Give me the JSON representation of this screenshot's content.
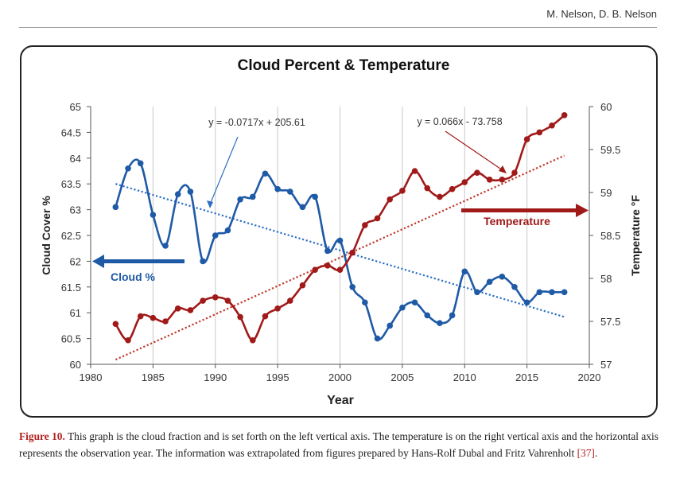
{
  "header": {
    "authors": "M. Nelson, D. B. Nelson"
  },
  "caption": {
    "label": "Figure 10.",
    "text_before_cite": " This graph is the cloud fraction and is set forth on the left vertical axis. The temperature is on the right vertical axis and the horizontal axis represents the observation year. The information was extrapolated from figures prepared by Hans-Rolf Dubal and Fritz Vahrenholt ",
    "cite": "[37]",
    "text_after_cite": "."
  },
  "chart_data": {
    "type": "line",
    "title": "Cloud Percent & Temperature",
    "xlabel": "Year",
    "ylabel_left": "Cloud Cover %",
    "ylabel_right": "Temperature °F",
    "xlim": [
      1980,
      2020
    ],
    "xticks": [
      "1980",
      "1985",
      "1990",
      "1995",
      "2000",
      "2005",
      "2010",
      "2015",
      "2020"
    ],
    "ylim_left": [
      60,
      65
    ],
    "yticks_left": [
      "60",
      "60.5",
      "61",
      "61.5",
      "62",
      "62.5",
      "63",
      "63.5",
      "64",
      "64.5",
      "65"
    ],
    "ylim_right": [
      57,
      60
    ],
    "yticks_right": [
      "57",
      "57.5",
      "58",
      "58.5",
      "59",
      "59.5",
      "60"
    ],
    "grid": "vertical",
    "colors": {
      "cloud": "#1f5aa6",
      "temperature": "#a11a1a",
      "trend_cloud": "#2e6fc4",
      "trend_temp": "#c0392b"
    },
    "series": [
      {
        "name": "Cloud %",
        "axis": "left",
        "x": [
          1982,
          1983,
          1984,
          1985,
          1986,
          1987,
          1988,
          1989,
          1990,
          1991,
          1992,
          1993,
          1994,
          1995,
          1996,
          1997,
          1998,
          1999,
          2000,
          2001,
          2002,
          2003,
          2004,
          2005,
          2006,
          2007,
          2008,
          2009,
          2010,
          2011,
          2012,
          2013,
          2014,
          2015,
          2016,
          2017,
          2018
        ],
        "values": [
          63.05,
          63.8,
          63.9,
          62.9,
          62.3,
          63.3,
          63.35,
          62.0,
          62.5,
          62.6,
          63.2,
          63.25,
          63.7,
          63.4,
          63.35,
          63.05,
          63.25,
          62.2,
          62.4,
          61.5,
          61.2,
          60.5,
          60.75,
          61.1,
          61.2,
          60.95,
          60.8,
          60.95,
          61.8,
          61.4,
          61.6,
          61.7,
          61.5,
          61.2,
          61.4,
          61.4,
          61.4
        ]
      },
      {
        "name": "Temperature",
        "axis": "right",
        "x": [
          1982,
          1983,
          1984,
          1985,
          1986,
          1987,
          1988,
          1989,
          1990,
          1991,
          1992,
          1993,
          1994,
          1995,
          1996,
          1997,
          1998,
          1999,
          2000,
          2001,
          2002,
          2003,
          2004,
          2005,
          2006,
          2007,
          2008,
          2009,
          2010,
          2011,
          2012,
          2013,
          2014,
          2015,
          2016,
          2017,
          2018
        ],
        "values": [
          57.47,
          57.28,
          57.56,
          57.54,
          57.5,
          57.65,
          57.63,
          57.74,
          57.78,
          57.74,
          57.55,
          57.28,
          57.56,
          57.65,
          57.74,
          57.92,
          58.1,
          58.15,
          58.1,
          58.3,
          58.62,
          58.7,
          58.92,
          59.02,
          59.25,
          59.05,
          58.95,
          59.04,
          59.12,
          59.23,
          59.15,
          59.15,
          59.23,
          59.62,
          59.7,
          59.78,
          59.9
        ]
      }
    ],
    "trendlines": [
      {
        "series": "Cloud %",
        "equation": "y = -0.0717x + 205.61",
        "slope": -0.0717,
        "intercept": 205.61,
        "x_range": [
          1982,
          2018
        ]
      },
      {
        "series": "Temperature",
        "equation": "y = 0.066x - 73.758",
        "slope": 0.066,
        "intercept": -73.758,
        "x_range": [
          1982,
          2018
        ]
      }
    ],
    "annotations": [
      {
        "text": "Cloud %",
        "arrow": "left"
      },
      {
        "text": "Temperature",
        "arrow": "right"
      }
    ]
  }
}
